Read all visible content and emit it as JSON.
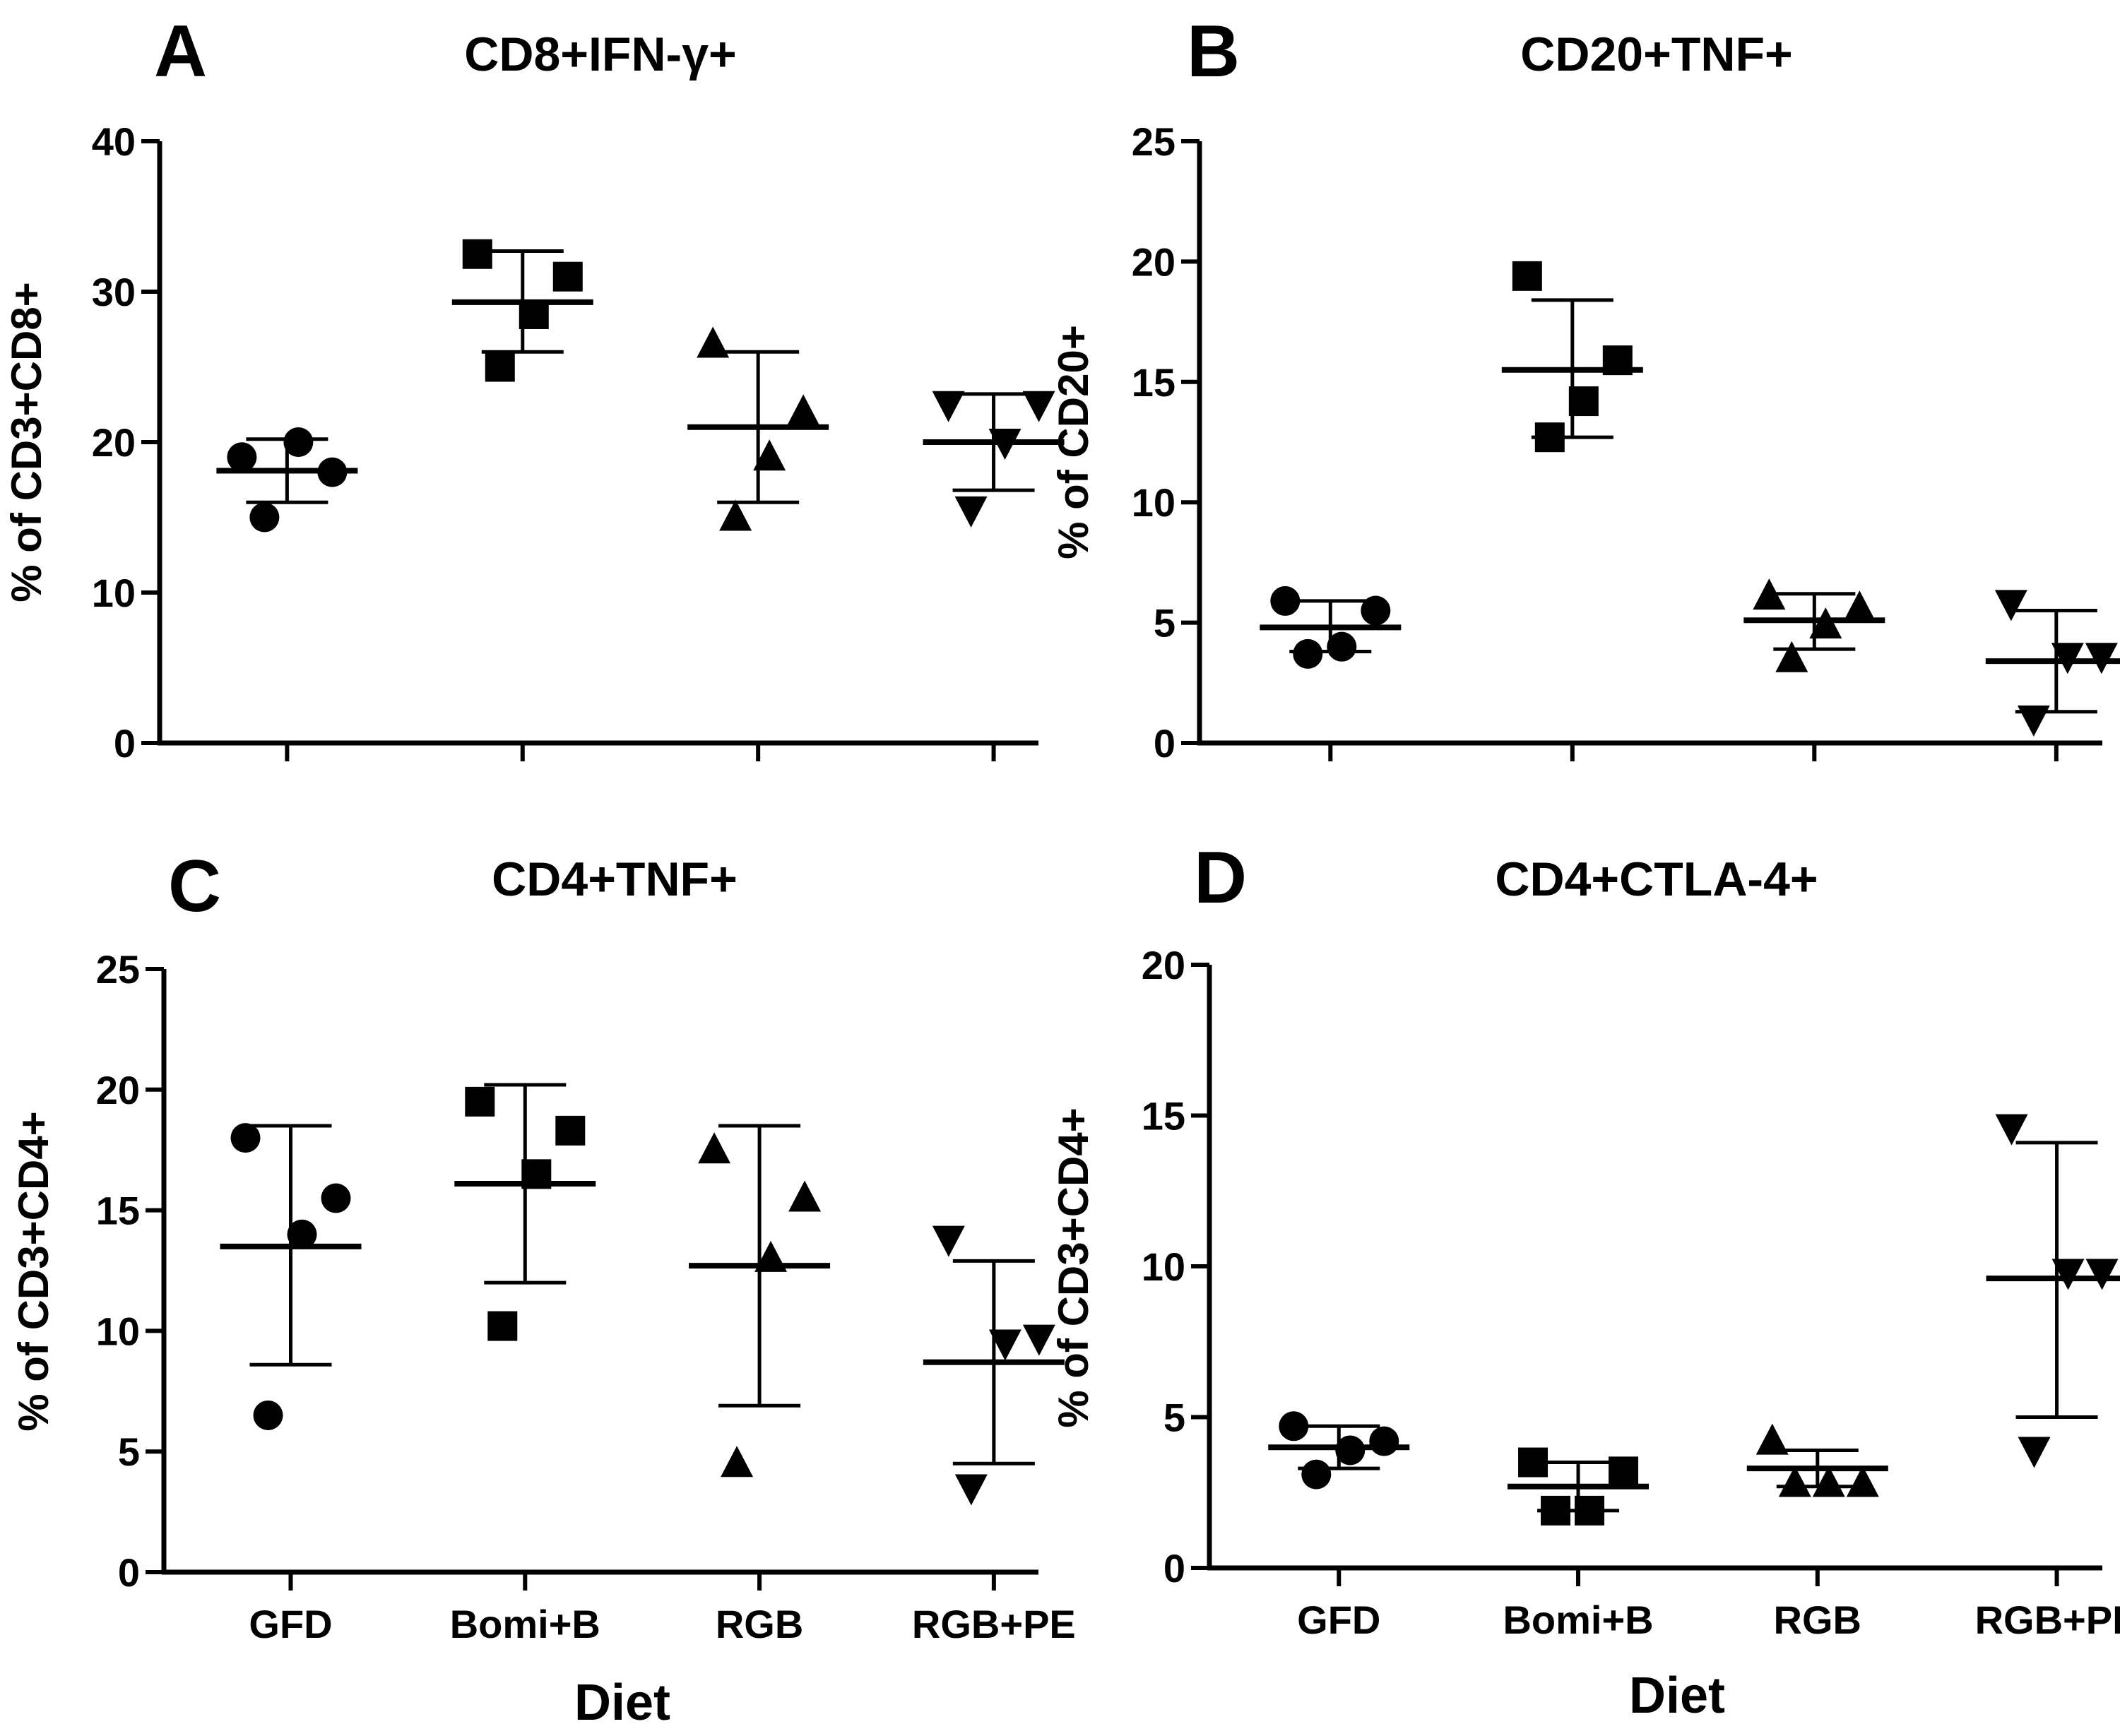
{
  "chart_data": [
    {
      "id": "A",
      "type": "scatter",
      "panel_label": "A",
      "title": "CD8+IFN-γ+",
      "ylabel": "% of CD3+CD8+",
      "xlabel": "",
      "categories": [
        "GFD",
        "Bomi+B",
        "RGB",
        "RGB+PE"
      ],
      "show_category_labels": false,
      "marker_shapes": [
        "circle",
        "square",
        "triangle-up",
        "triangle-down"
      ],
      "ylim": [
        0,
        40
      ],
      "yticks": [
        0,
        10,
        20,
        30,
        40
      ],
      "ytick_labels": [
        "0",
        "10",
        "20",
        "30",
        "40"
      ],
      "series": [
        {
          "points": [
            19.0,
            18.0,
            20.0,
            15.0
          ],
          "mean": 18.1,
          "sd_low": 16.0,
          "sd_high": 20.2
        },
        {
          "points": [
            32.5,
            31.0,
            28.5,
            25.0
          ],
          "mean": 29.3,
          "sd_low": 26.0,
          "sd_high": 32.7
        },
        {
          "points": [
            26.5,
            22.0,
            19.0,
            15.0
          ],
          "mean": 21.0,
          "sd_low": 16.0,
          "sd_high": 26.0
        },
        {
          "points": [
            22.5,
            22.5,
            20.0,
            15.5
          ],
          "mean": 20.0,
          "sd_low": 16.8,
          "sd_high": 23.2
        }
      ]
    },
    {
      "id": "B",
      "type": "scatter",
      "panel_label": "B",
      "title": "CD20+TNF+",
      "ylabel": "% of CD20+",
      "xlabel": "",
      "categories": [
        "GFD",
        "Bomi+B",
        "RGB",
        "RGB+PE"
      ],
      "show_category_labels": false,
      "marker_shapes": [
        "circle",
        "square",
        "triangle-up",
        "triangle-down"
      ],
      "ylim": [
        0,
        25
      ],
      "yticks": [
        0,
        5,
        10,
        15,
        20,
        25
      ],
      "ytick_labels": [
        "0",
        "5",
        "10",
        "15",
        "20",
        "25"
      ],
      "series": [
        {
          "points": [
            5.9,
            5.5,
            4.0,
            3.7
          ],
          "mean": 4.8,
          "sd_low": 3.8,
          "sd_high": 5.9
        },
        {
          "points": [
            19.4,
            15.9,
            14.2,
            12.7
          ],
          "mean": 15.5,
          "sd_low": 12.7,
          "sd_high": 18.4
        },
        {
          "points": [
            6.1,
            5.6,
            4.9,
            3.5
          ],
          "mean": 5.1,
          "sd_low": 3.9,
          "sd_high": 6.2
        },
        {
          "points": [
            5.8,
            3.6,
            3.6,
            1.0
          ],
          "mean": 3.4,
          "sd_low": 1.3,
          "sd_high": 5.5
        }
      ]
    },
    {
      "id": "C",
      "type": "scatter",
      "panel_label": "C",
      "title": "CD4+TNF+",
      "ylabel": "% of CD3+CD4+",
      "xlabel": "Diet",
      "categories": [
        "GFD",
        "Bomi+B",
        "RGB",
        "RGB+PE"
      ],
      "show_category_labels": true,
      "marker_shapes": [
        "circle",
        "square",
        "triangle-up",
        "triangle-down"
      ],
      "ylim": [
        0,
        25
      ],
      "yticks": [
        0,
        5,
        10,
        15,
        20,
        25
      ],
      "ytick_labels": [
        "0",
        "5",
        "10",
        "15",
        "20",
        "25"
      ],
      "series": [
        {
          "points": [
            18.0,
            15.5,
            14.0,
            6.5
          ],
          "mean": 13.5,
          "sd_low": 8.6,
          "sd_high": 18.5
        },
        {
          "points": [
            19.5,
            18.3,
            16.5,
            10.2
          ],
          "mean": 16.1,
          "sd_low": 12.0,
          "sd_high": 20.2
        },
        {
          "points": [
            17.5,
            15.5,
            13.0,
            4.5
          ],
          "mean": 12.7,
          "sd_low": 6.9,
          "sd_high": 18.5
        },
        {
          "points": [
            13.8,
            9.7,
            9.5,
            3.5
          ],
          "mean": 8.7,
          "sd_low": 4.5,
          "sd_high": 12.9
        }
      ]
    },
    {
      "id": "D",
      "type": "scatter",
      "panel_label": "D",
      "title": "CD4+CTLA-4+",
      "ylabel": "% of CD3+CD4+",
      "xlabel": "Diet",
      "categories": [
        "GFD",
        "Bomi+B",
        "RGB",
        "RGB+PE"
      ],
      "show_category_labels": true,
      "marker_shapes": [
        "circle",
        "square",
        "triangle-up",
        "triangle-down"
      ],
      "ylim": [
        0,
        20
      ],
      "yticks": [
        0,
        5,
        10,
        15,
        20
      ],
      "ytick_labels": [
        "0",
        "5",
        "10",
        "15",
        "20"
      ],
      "series": [
        {
          "points": [
            4.7,
            4.2,
            3.9,
            3.1
          ],
          "mean": 4.0,
          "sd_low": 3.3,
          "sd_high": 4.7
        },
        {
          "points": [
            3.5,
            3.2,
            1.9,
            1.9
          ],
          "mean": 2.7,
          "sd_low": 1.9,
          "sd_high": 3.5
        },
        {
          "points": [
            4.2,
            2.8,
            2.8,
            2.8
          ],
          "mean": 3.3,
          "sd_low": 2.7,
          "sd_high": 3.9
        },
        {
          "points": [
            14.6,
            9.8,
            9.8,
            3.9
          ],
          "mean": 9.6,
          "sd_low": 5.0,
          "sd_high": 14.1
        }
      ]
    }
  ]
}
